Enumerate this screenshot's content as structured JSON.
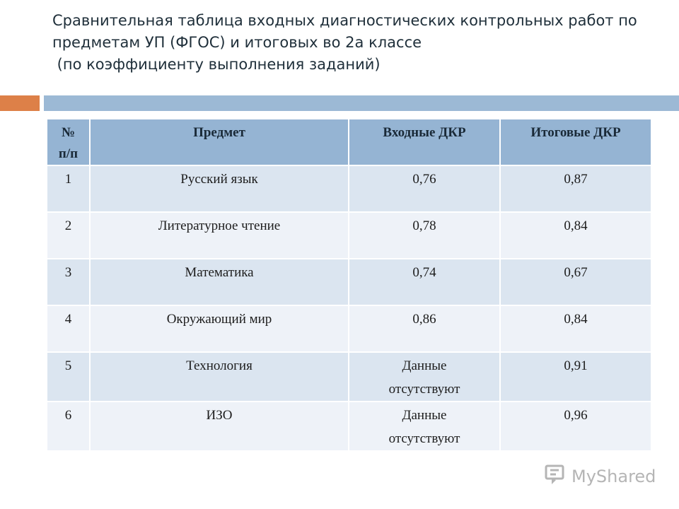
{
  "title": {
    "line1": "Сравнительная таблица входных диагностических контрольных работ по",
    "line2": "предметам УП (ФГОС) и итоговых во 2а классе",
    "line3": " (по коэффициенту выполнения заданий)"
  },
  "table": {
    "headers": {
      "num_line1": "№",
      "num_line2": "п/п",
      "subject": "Предмет",
      "input": "Входные ДКР",
      "final": "Итоговые ДКР"
    },
    "rows": [
      {
        "num": "1",
        "subject": "Русский язык",
        "input": "0,76",
        "final": "0,87"
      },
      {
        "num": "2",
        "subject": "Литературное чтение",
        "input": "0,78",
        "final": "0,84"
      },
      {
        "num": "3",
        "subject": "Математика",
        "input": "0,74",
        "final": "0,67"
      },
      {
        "num": "4",
        "subject": "Окружающий мир",
        "input": "0,86",
        "final": "0,84"
      },
      {
        "num": "5",
        "subject": "Технология",
        "input_line1": "Данные",
        "input_line2": "отсутствуют",
        "final": "0,91"
      },
      {
        "num": "6",
        "subject": "ИЗО",
        "input_line1": "Данные",
        "input_line2": "отсутствуют",
        "final": "0,96"
      }
    ]
  },
  "watermark": {
    "text": "MyShared",
    "icon": "shared-logo-icon"
  },
  "colors": {
    "accent_orange": "#dd8048",
    "accent_blue": "#9cb9d5",
    "header_bg": "#95b4d3",
    "row_odd_bg": "#dbe5f0",
    "row_even_bg": "#eef2f8"
  }
}
